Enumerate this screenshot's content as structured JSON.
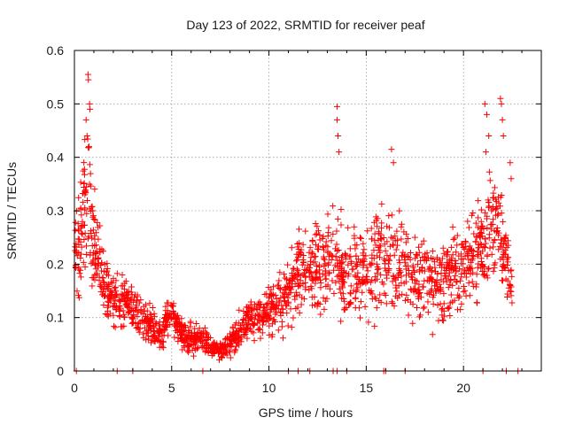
{
  "chart_data": {
    "type": "scatter",
    "title": "Day 123 of 2022, SRMTID for receiver peaf",
    "xlabel": "GPS time / hours",
    "ylabel": "SRMTID / TECUs",
    "xlim": [
      0,
      24
    ],
    "ylim": [
      0,
      0.6
    ],
    "x_ticks": [
      0,
      5,
      10,
      15,
      20
    ],
    "x_tick_labels": [
      "0",
      "5",
      "10",
      "15",
      "20"
    ],
    "y_ticks": [
      0,
      0.1,
      0.2,
      0.3,
      0.4,
      0.5,
      0.6
    ],
    "y_tick_labels": [
      "0",
      "0.1",
      "0.2",
      "0.3",
      "0.4",
      "0.5",
      "0.6"
    ],
    "grid": true,
    "marker": "+",
    "color": "#ff0000",
    "series": [
      {
        "name": "SRMTID",
        "envelope_hours": [
          0.0,
          0.2,
          0.5,
          0.7,
          0.9,
          1.2,
          1.6,
          2.0,
          2.5,
          3.0,
          3.5,
          4.0,
          4.5,
          5.0,
          5.5,
          6.0,
          6.5,
          7.0,
          7.3,
          7.7,
          8.0,
          8.5,
          9.0,
          9.5,
          10.0,
          10.5,
          11.0,
          11.5,
          12.0,
          12.5,
          13.0,
          13.5,
          14.0,
          14.5,
          15.0,
          15.5,
          16.0,
          16.5,
          17.0,
          17.5,
          18.0,
          18.5,
          19.0,
          19.5,
          20.0,
          20.5,
          21.0,
          21.3,
          21.6,
          21.9,
          22.2,
          22.5
        ],
        "envelope_median": [
          0.22,
          0.24,
          0.3,
          0.33,
          0.26,
          0.2,
          0.16,
          0.14,
          0.13,
          0.12,
          0.1,
          0.08,
          0.07,
          0.11,
          0.07,
          0.06,
          0.06,
          0.05,
          0.04,
          0.04,
          0.05,
          0.08,
          0.1,
          0.1,
          0.11,
          0.13,
          0.14,
          0.18,
          0.2,
          0.19,
          0.2,
          0.22,
          0.17,
          0.18,
          0.19,
          0.2,
          0.2,
          0.19,
          0.18,
          0.18,
          0.17,
          0.16,
          0.17,
          0.18,
          0.2,
          0.22,
          0.24,
          0.27,
          0.28,
          0.26,
          0.2,
          0.15
        ],
        "envelope_spread": [
          0.08,
          0.09,
          0.12,
          0.12,
          0.09,
          0.06,
          0.05,
          0.05,
          0.04,
          0.04,
          0.03,
          0.03,
          0.03,
          0.03,
          0.025,
          0.025,
          0.02,
          0.02,
          0.015,
          0.015,
          0.02,
          0.03,
          0.03,
          0.03,
          0.04,
          0.05,
          0.06,
          0.07,
          0.07,
          0.07,
          0.07,
          0.08,
          0.08,
          0.08,
          0.08,
          0.08,
          0.08,
          0.08,
          0.08,
          0.07,
          0.07,
          0.07,
          0.07,
          0.07,
          0.07,
          0.07,
          0.08,
          0.1,
          0.1,
          0.08,
          0.06,
          0.05
        ],
        "outliers": [
          {
            "x": 0.7,
            "y": 0.555
          },
          {
            "x": 0.72,
            "y": 0.545
          },
          {
            "x": 0.78,
            "y": 0.5
          },
          {
            "x": 0.8,
            "y": 0.49
          },
          {
            "x": 0.6,
            "y": 0.47
          },
          {
            "x": 0.65,
            "y": 0.44
          },
          {
            "x": 0.75,
            "y": 0.42
          },
          {
            "x": 13.5,
            "y": 0.495
          },
          {
            "x": 13.5,
            "y": 0.47
          },
          {
            "x": 13.55,
            "y": 0.44
          },
          {
            "x": 13.6,
            "y": 0.41
          },
          {
            "x": 16.3,
            "y": 0.415
          },
          {
            "x": 16.4,
            "y": 0.39
          },
          {
            "x": 21.1,
            "y": 0.5
          },
          {
            "x": 21.2,
            "y": 0.48
          },
          {
            "x": 21.3,
            "y": 0.44
          },
          {
            "x": 21.15,
            "y": 0.41
          },
          {
            "x": 21.9,
            "y": 0.51
          },
          {
            "x": 21.95,
            "y": 0.5
          },
          {
            "x": 22.0,
            "y": 0.47
          },
          {
            "x": 22.05,
            "y": 0.44
          },
          {
            "x": 22.4,
            "y": 0.39
          },
          {
            "x": 22.45,
            "y": 0.36
          }
        ],
        "zero_points_hours": [
          0.1,
          2.2,
          3.0,
          6.6,
          11.0,
          11.5,
          12.1,
          13.3,
          13.5,
          14.0,
          15.9,
          16.0,
          17.0,
          21.0,
          22.2,
          22.8
        ]
      }
    ]
  }
}
